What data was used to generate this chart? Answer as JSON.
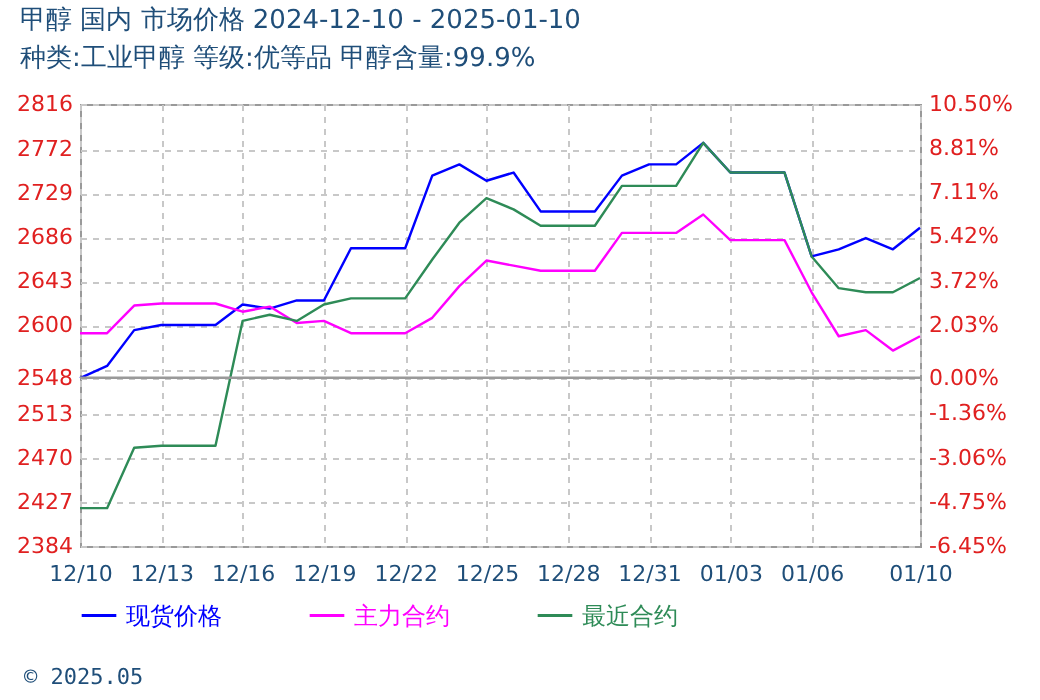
{
  "chart_data": {
    "type": "line",
    "title": "甲醇 国内 市场价格 2024-12-10 - 2025-01-10",
    "subtitle": "种类:工业甲醇 等级:优等品 甲醇含量:99.9%",
    "x": [
      "2024-12-10",
      "2024-12-11",
      "2024-12-12",
      "2024-12-13",
      "2024-12-14",
      "2024-12-15",
      "2024-12-16",
      "2024-12-17",
      "2024-12-18",
      "2024-12-19",
      "2024-12-20",
      "2024-12-21",
      "2024-12-22",
      "2024-12-23",
      "2024-12-24",
      "2024-12-25",
      "2024-12-26",
      "2024-12-27",
      "2024-12-28",
      "2024-12-29",
      "2024-12-30",
      "2024-12-31",
      "2025-01-01",
      "2025-01-02",
      "2025-01-03",
      "2025-01-04",
      "2025-01-05",
      "2025-01-06",
      "2025-01-07",
      "2025-01-08",
      "2025-01-09",
      "2025-01-10"
    ],
    "series": [
      {
        "name": "现货价格",
        "color": "#0000ff",
        "values": [
          2548,
          2560,
          2595,
          2600,
          2600,
          2600,
          2620,
          2616,
          2624,
          2624,
          2675,
          2675,
          2675,
          2746,
          2757,
          2741,
          2749,
          2711,
          2711,
          2711,
          2746,
          2757,
          2757,
          2778,
          2749,
          2749,
          2749,
          2667,
          2674,
          2685,
          2674,
          2695
        ]
      },
      {
        "name": "主力合约",
        "color": "#ff00ff",
        "values": [
          2592,
          2592,
          2619,
          2621,
          2621,
          2621,
          2613,
          2618,
          2602,
          2604,
          2592,
          2592,
          2592,
          2607,
          2638,
          2663,
          2658,
          2653,
          2653,
          2653,
          2690,
          2690,
          2690,
          2708,
          2683,
          2683,
          2683,
          2632,
          2589,
          2595,
          2575,
          2589
        ]
      },
      {
        "name": "最近合约",
        "color": "#2e8b57",
        "values": [
          2421,
          2421,
          2480,
          2482,
          2482,
          2482,
          2604,
          2610,
          2604,
          2620,
          2626,
          2626,
          2626,
          2664,
          2700,
          2724,
          2713,
          2697,
          2697,
          2697,
          2736,
          2736,
          2736,
          2778,
          2749,
          2749,
          2749,
          2667,
          2636,
          2632,
          2632,
          2646
        ]
      }
    ],
    "xlim": [
      "2024-12-10",
      "2025-01-10"
    ],
    "xticks": [
      {
        "value": "2024-12-10",
        "label": "12/10"
      },
      {
        "value": "2024-12-13",
        "label": "12/13"
      },
      {
        "value": "2024-12-16",
        "label": "12/16"
      },
      {
        "value": "2024-12-19",
        "label": "12/19"
      },
      {
        "value": "2024-12-22",
        "label": "12/22"
      },
      {
        "value": "2024-12-25",
        "label": "12/25"
      },
      {
        "value": "2024-12-28",
        "label": "12/28"
      },
      {
        "value": "2024-12-31",
        "label": "12/31"
      },
      {
        "value": "2025-01-03",
        "label": "01/03"
      },
      {
        "value": "2025-01-06",
        "label": "01/06"
      },
      {
        "value": "2025-01-10",
        "label": "01/10"
      }
    ],
    "ylim": [
      2384,
      2816
    ],
    "yticks": [
      2816,
      2772,
      2729,
      2686,
      2643,
      2600,
      {
        "value": 2556.8,
        "label": null
      },
      2548,
      2513,
      2470,
      2427,
      2384
    ],
    "y2lim": [
      -6.45,
      10.5
    ],
    "y2ticks": [
      {
        "value": 10.5,
        "label": "10.50%"
      },
      {
        "value": 8.81,
        "label": "8.81%"
      },
      {
        "value": 7.11,
        "label": "7.11%"
      },
      {
        "value": 5.42,
        "label": "5.42%"
      },
      {
        "value": 3.72,
        "label": "3.72%"
      },
      {
        "value": 2.03,
        "label": "2.03%"
      },
      {
        "value": 0,
        "label": "0.00%"
      },
      {
        "value": -1.36,
        "label": "-1.36%"
      },
      {
        "value": -3.06,
        "label": "-3.06%"
      },
      {
        "value": -4.75,
        "label": "-4.75%"
      },
      {
        "value": -6.45,
        "label": "-6.45%"
      }
    ],
    "ref_lines": [
      {
        "axis": "y2",
        "value": 0,
        "color": "#999999"
      }
    ],
    "annotations": [
      "© 2025.05"
    ],
    "grid": true,
    "legend": "bottom",
    "line_style": "solid",
    "marker": "none"
  }
}
